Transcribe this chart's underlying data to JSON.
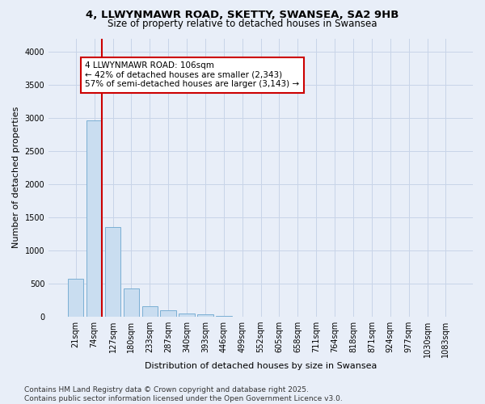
{
  "title_line1": "4, LLWYNMAWR ROAD, SKETTY, SWANSEA, SA2 9HB",
  "title_line2": "Size of property relative to detached houses in Swansea",
  "xlabel": "Distribution of detached houses by size in Swansea",
  "ylabel": "Number of detached properties",
  "categories": [
    "21sqm",
    "74sqm",
    "127sqm",
    "180sqm",
    "233sqm",
    "287sqm",
    "340sqm",
    "393sqm",
    "446sqm",
    "499sqm",
    "552sqm",
    "605sqm",
    "658sqm",
    "711sqm",
    "764sqm",
    "818sqm",
    "871sqm",
    "924sqm",
    "977sqm",
    "1030sqm",
    "1083sqm"
  ],
  "values": [
    570,
    2960,
    1350,
    430,
    160,
    90,
    45,
    30,
    15,
    0,
    0,
    0,
    0,
    0,
    0,
    0,
    0,
    0,
    0,
    0,
    0
  ],
  "bar_color": "#c9ddf0",
  "bar_edge_color": "#7bafd4",
  "grid_color": "#c8d4e8",
  "background_color": "#e8eef8",
  "vline_color": "#cc0000",
  "vline_pos": 1.5,
  "annotation_text": "4 LLWYNMAWR ROAD: 106sqm\n← 42% of detached houses are smaller (2,343)\n57% of semi-detached houses are larger (3,143) →",
  "annotation_box_facecolor": "#ffffff",
  "annotation_box_edgecolor": "#cc0000",
  "ylim": [
    0,
    4200
  ],
  "yticks": [
    0,
    500,
    1000,
    1500,
    2000,
    2500,
    3000,
    3500,
    4000
  ],
  "footer_line1": "Contains HM Land Registry data © Crown copyright and database right 2025.",
  "footer_line2": "Contains public sector information licensed under the Open Government Licence v3.0.",
  "title_fontsize": 9.5,
  "subtitle_fontsize": 8.5,
  "axis_label_fontsize": 8,
  "tick_fontsize": 7,
  "annotation_fontsize": 7.5,
  "footer_fontsize": 6.5
}
